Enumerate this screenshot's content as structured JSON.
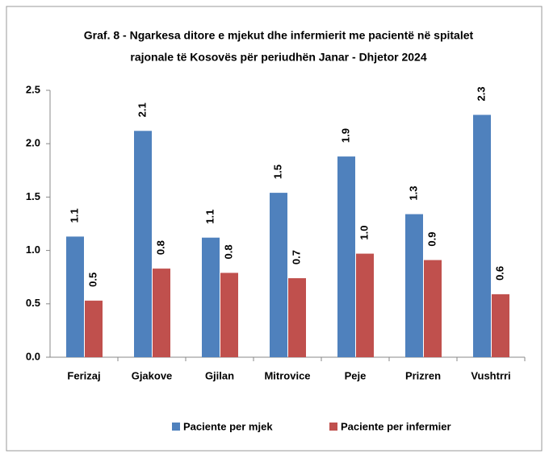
{
  "chart_data": {
    "type": "bar",
    "title": [
      "Graf. 8 - Ngarkesa ditore e mjekut dhe infermierit me pacientë në spitalet",
      "rajonale  të Kosovës për periudhën Janar  - Dhjetor 2024"
    ],
    "categories": [
      "Ferizaj",
      "Gjakove",
      "Gjilan",
      "Mitrovice",
      "Peje",
      "Prizren",
      "Vushtrri"
    ],
    "series": [
      {
        "name": "Paciente per mjek",
        "color": "#4f81bd",
        "values": [
          1.13,
          2.12,
          1.12,
          1.54,
          1.88,
          1.34,
          2.27
        ],
        "value_labels": [
          "1.1",
          "2.1",
          "1.1",
          "1.5",
          "1.9",
          "1.3",
          "2.3"
        ]
      },
      {
        "name": "Paciente per infermier",
        "color": "#c0504d",
        "values": [
          0.53,
          0.83,
          0.79,
          0.74,
          0.97,
          0.91,
          0.59
        ],
        "value_labels": [
          "0.5",
          "0.8",
          "0.8",
          "0.7",
          "1.0",
          "0.9",
          "0.6"
        ]
      }
    ],
    "ylim": [
      0,
      2.5
    ],
    "yticks": [
      {
        "value": 0,
        "label": "0.0"
      },
      0.5,
      {
        "value": 1,
        "label": "1.0"
      },
      1.5,
      {
        "value": 2,
        "label": "2.0"
      },
      2.5
    ],
    "grid": false,
    "legend": "bottom"
  }
}
